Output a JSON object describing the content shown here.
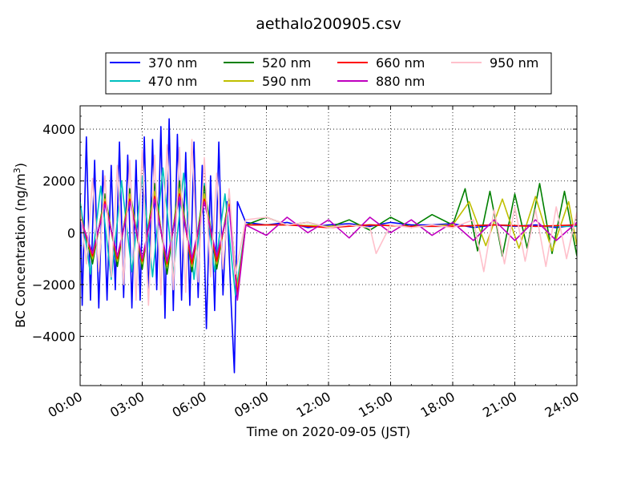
{
  "chart_data": {
    "type": "line",
    "title": "aethalo200905.csv",
    "xlabel": "Time on 2020-09-05 (JST)",
    "ylabel_main": "BC Concentration (ng/m",
    "ylabel_sup": "3",
    "ylabel_tail": ")",
    "xlim_hours": [
      0,
      24
    ],
    "ylim": [
      -5900,
      4900
    ],
    "xticks": [
      {
        "hour": 0,
        "label": "00:00"
      },
      {
        "hour": 3,
        "label": "03:00"
      },
      {
        "hour": 6,
        "label": "06:00"
      },
      {
        "hour": 9,
        "label": "09:00"
      },
      {
        "hour": 12,
        "label": "12:00"
      },
      {
        "hour": 15,
        "label": "15:00"
      },
      {
        "hour": 18,
        "label": "18:00"
      },
      {
        "hour": 21,
        "label": "21:00"
      },
      {
        "hour": 24,
        "label": "24:00"
      }
    ],
    "yticks": [
      {
        "value": 4000,
        "label": "4000"
      },
      {
        "value": 2000,
        "label": "2000"
      },
      {
        "value": 0,
        "label": "0"
      },
      {
        "value": -2000,
        "label": "−2000"
      },
      {
        "value": -4000,
        "label": "−4000"
      }
    ],
    "grid": true,
    "legend_position": "top-center (above plot, 4 columns)",
    "series": [
      {
        "name": "370 nm",
        "color": "#0000ff",
        "hours": [
          0.0,
          0.1,
          0.3,
          0.5,
          0.7,
          0.9,
          1.1,
          1.3,
          1.5,
          1.7,
          1.9,
          2.1,
          2.3,
          2.5,
          2.7,
          2.9,
          3.1,
          3.3,
          3.5,
          3.7,
          3.9,
          4.1,
          4.3,
          4.5,
          4.7,
          4.9,
          5.1,
          5.3,
          5.5,
          5.7,
          5.9,
          6.1,
          6.3,
          6.5,
          6.7,
          6.9,
          7.1,
          7.3,
          7.45,
          7.6,
          8.0,
          9.0,
          10.0,
          11.0,
          12.0,
          13.0,
          14.0,
          15.0,
          16.0,
          17.0,
          18.0,
          19.0,
          20.0,
          21.0,
          22.0,
          23.0,
          24.0
        ],
        "values": [
          1500,
          -2800,
          3700,
          -2600,
          2800,
          -2900,
          2400,
          -2600,
          2600,
          -2200,
          3500,
          -2500,
          3000,
          -2900,
          2800,
          -2600,
          3700,
          -2500,
          3600,
          -2200,
          4100,
          -3300,
          4400,
          -3000,
          3800,
          -2600,
          3100,
          -2800,
          3500,
          -2500,
          2600,
          -3700,
          2200,
          -3000,
          3500,
          -2400,
          1200,
          -2800,
          -5400,
          1200,
          400,
          300,
          400,
          200,
          300,
          350,
          250,
          400,
          300,
          300,
          350,
          200,
          300,
          250,
          300,
          200,
          300
        ]
      },
      {
        "name": "470 nm",
        "color": "#00bfbf",
        "hours": [
          0.0,
          0.5,
          1.0,
          1.5,
          2.0,
          2.5,
          3.0,
          3.5,
          4.0,
          4.5,
          5.0,
          5.5,
          6.0,
          6.5,
          7.0,
          7.5,
          8.0,
          10.0,
          12.0,
          14.0,
          16.0,
          18.0,
          20.0,
          22.0,
          24.0
        ],
        "values": [
          1200,
          -1600,
          1800,
          -1800,
          2000,
          -1500,
          2200,
          -1700,
          2500,
          -1600,
          2300,
          -1800,
          1900,
          -1500,
          1500,
          -2400,
          300,
          300,
          250,
          300,
          250,
          250,
          300,
          250,
          250
        ]
      },
      {
        "name": "520 nm",
        "color": "#008000",
        "hours": [
          0.0,
          0.6,
          1.2,
          1.8,
          2.4,
          3.0,
          3.6,
          4.2,
          4.8,
          5.4,
          6.0,
          6.6,
          7.2,
          7.6,
          8.0,
          9.0,
          10.0,
          11.0,
          12.0,
          13.0,
          14.0,
          15.0,
          16.0,
          17.0,
          18.0,
          18.6,
          19.2,
          19.8,
          20.4,
          21.0,
          21.6,
          22.2,
          22.8,
          23.4,
          24.0
        ],
        "values": [
          800,
          -1200,
          1500,
          -1300,
          1700,
          -1400,
          1900,
          -1600,
          2000,
          -1500,
          1800,
          -1400,
          1400,
          -2300,
          300,
          600,
          300,
          400,
          200,
          500,
          100,
          600,
          200,
          700,
          300,
          1700,
          -700,
          1600,
          -900,
          1500,
          -600,
          1900,
          -800,
          1600,
          -900
        ]
      },
      {
        "name": "590 nm",
        "color": "#bfbf00",
        "hours": [
          0.0,
          0.6,
          1.2,
          1.8,
          2.4,
          3.0,
          3.6,
          4.2,
          4.8,
          5.4,
          6.0,
          6.6,
          7.2,
          7.6,
          8.0,
          10.0,
          12.0,
          14.0,
          16.0,
          18.0,
          18.8,
          19.6,
          20.4,
          21.2,
          22.0,
          22.8,
          23.6,
          24.0
        ],
        "values": [
          700,
          -1000,
          1300,
          -1100,
          1500,
          -1200,
          1600,
          -1300,
          1700,
          -1300,
          1500,
          -1200,
          1200,
          -2200,
          300,
          300,
          250,
          300,
          250,
          300,
          1200,
          -500,
          1300,
          -600,
          1400,
          -700,
          1200,
          -500
        ]
      },
      {
        "name": "660 nm",
        "color": "#ff0000",
        "hours": [
          0.0,
          0.6,
          1.2,
          1.8,
          2.4,
          3.0,
          3.6,
          4.2,
          4.8,
          5.4,
          6.0,
          6.6,
          7.2,
          7.6,
          8.0,
          10.0,
          12.0,
          14.0,
          16.0,
          18.0,
          20.0,
          22.0,
          24.0
        ],
        "values": [
          600,
          -900,
          1200,
          -1000,
          1300,
          -1100,
          1400,
          -1200,
          1500,
          -1200,
          1300,
          -1100,
          1100,
          -2400,
          300,
          300,
          200,
          300,
          250,
          250,
          300,
          250,
          300
        ]
      },
      {
        "name": "880 nm",
        "color": "#bf00bf",
        "hours": [
          0.0,
          0.6,
          1.2,
          1.8,
          2.4,
          3.0,
          3.6,
          4.2,
          4.8,
          5.4,
          6.0,
          6.6,
          7.2,
          7.6,
          8.0,
          9.0,
          10.0,
          11.0,
          12.0,
          13.0,
          14.0,
          15.0,
          16.0,
          17.0,
          18.0,
          19.0,
          20.0,
          21.0,
          22.0,
          23.0,
          24.0
        ],
        "values": [
          600,
          -800,
          1100,
          -900,
          1200,
          -1000,
          1300,
          -1100,
          1400,
          -1000,
          1200,
          -900,
          1000,
          -2600,
          300,
          -100,
          600,
          0,
          500,
          -200,
          600,
          0,
          500,
          -100,
          400,
          -300,
          500,
          -300,
          500,
          -300,
          400
        ]
      },
      {
        "name": "950 nm",
        "color": "#ffc0cb",
        "hours": [
          0.0,
          0.3,
          0.6,
          0.9,
          1.2,
          1.5,
          1.8,
          2.1,
          2.4,
          2.7,
          3.0,
          3.3,
          3.6,
          3.9,
          4.2,
          4.5,
          4.8,
          5.1,
          5.4,
          5.7,
          6.0,
          6.3,
          6.6,
          6.9,
          7.2,
          7.5,
          8.0,
          9.0,
          10.0,
          11.0,
          12.0,
          13.0,
          14.0,
          14.3,
          15.0,
          16.0,
          17.0,
          18.0,
          19.0,
          19.5,
          20.0,
          20.5,
          21.0,
          21.5,
          22.0,
          22.5,
          23.0,
          23.5,
          24.0
        ],
        "values": [
          900,
          -1200,
          2100,
          -1500,
          2200,
          -1700,
          2600,
          -2000,
          2800,
          -2600,
          3200,
          -2800,
          3000,
          -2400,
          3400,
          -2200,
          3300,
          -2300,
          3600,
          -1900,
          2900,
          -1700,
          2300,
          -1400,
          1700,
          -1600,
          500,
          600,
          300,
          400,
          200,
          300,
          200,
          -800,
          300,
          200,
          300,
          200,
          500,
          -1500,
          900,
          -1200,
          1000,
          -1100,
          900,
          -1300,
          1000,
          -1000,
          800
        ]
      }
    ]
  }
}
